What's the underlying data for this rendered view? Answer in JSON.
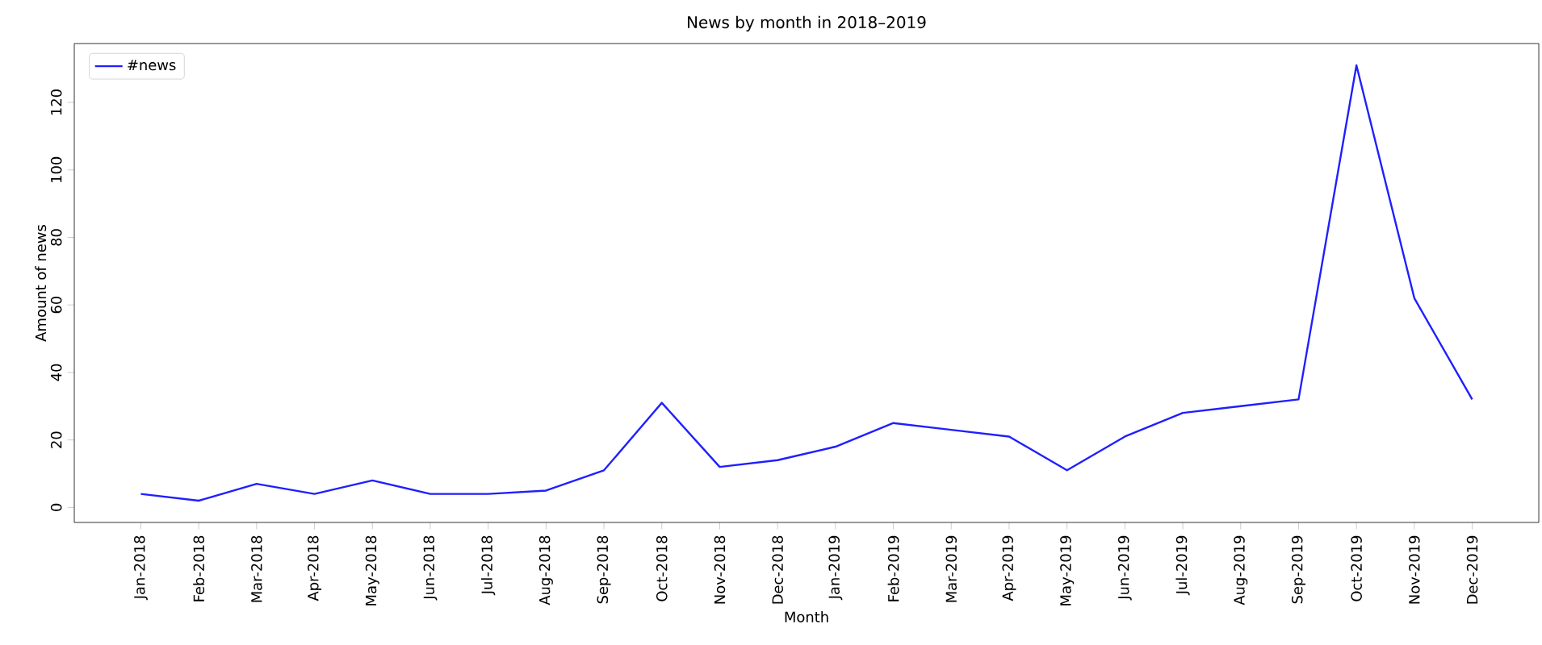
{
  "chart_data": {
    "type": "line",
    "title": "News by month in 2018–2019",
    "xlabel": "Month",
    "ylabel": "Amount of news",
    "categories": [
      "Jan-2018",
      "Feb-2018",
      "Mar-2018",
      "Apr-2018",
      "May-2018",
      "Jun-2018",
      "Jul-2018",
      "Aug-2018",
      "Sep-2018",
      "Oct-2018",
      "Nov-2018",
      "Dec-2018",
      "Jan-2019",
      "Feb-2019",
      "Mar-2019",
      "Apr-2019",
      "May-2019",
      "Jun-2019",
      "Jul-2019",
      "Aug-2019",
      "Sep-2019",
      "Oct-2019",
      "Nov-2019",
      "Dec-2019"
    ],
    "series": [
      {
        "name": "#news",
        "color": "#1f1fff",
        "values": [
          4,
          2,
          7,
          4,
          8,
          4,
          4,
          5,
          11,
          31,
          12,
          14,
          18,
          25,
          23,
          21,
          11,
          21,
          28,
          30,
          32,
          131,
          62,
          32
        ]
      }
    ],
    "ylim": [
      -4.45,
      137.45
    ],
    "yticks": [
      0,
      20,
      40,
      60,
      80,
      100,
      120
    ],
    "legend": "top left",
    "grid": false
  }
}
